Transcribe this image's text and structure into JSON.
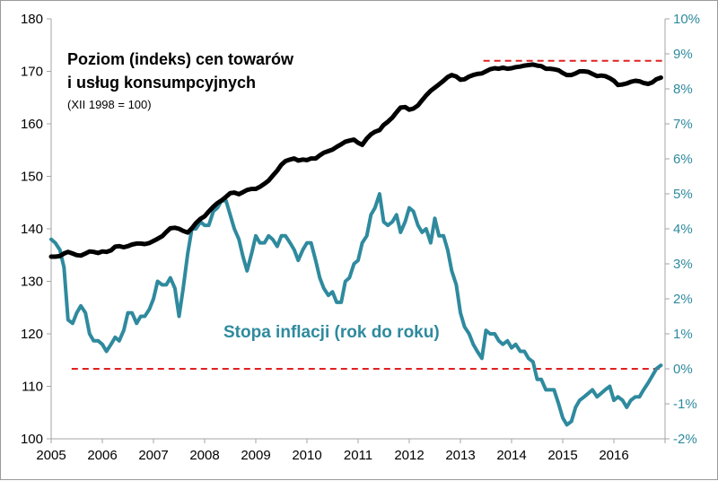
{
  "chart_data": {
    "type": "line",
    "title": "Poziom (indeks) cen towarów i usług konsumpcyjnych",
    "title_lines": [
      "Poziom (indeks) cen towarów",
      "i usług konsumpcyjnych"
    ],
    "subtitle": "(XII 1998 = 100)",
    "x_range": [
      2005,
      2017
    ],
    "x_ticks": [
      "2005",
      "2006",
      "2007",
      "2008",
      "2009",
      "2010",
      "2011",
      "2012",
      "2013",
      "2014",
      "2015",
      "2016"
    ],
    "y_left": {
      "range": [
        100,
        180
      ],
      "ticks": [
        "100",
        "110",
        "120",
        "130",
        "140",
        "150",
        "160",
        "170",
        "180"
      ]
    },
    "y_right": {
      "range": [
        -2,
        10
      ],
      "ticks": [
        "-2%",
        "-1%",
        "0%",
        "1%",
        "2%",
        "3%",
        "4%",
        "5%",
        "6%",
        "7%",
        "8%",
        "9%",
        "10%"
      ]
    },
    "colors": {
      "index": "#000000",
      "inflation": "#2f8a9e",
      "reference": "#e02020",
      "axis": "#a6a6a6"
    },
    "series": [
      {
        "name": "Poziom (indeks) cen towarów i usług konsumpcyjnych",
        "axis": "left",
        "x": [
          2005.0,
          2005.08,
          2005.17,
          2005.25,
          2005.33,
          2005.42,
          2005.5,
          2005.58,
          2005.67,
          2005.75,
          2005.83,
          2005.92,
          2006.0,
          2006.08,
          2006.17,
          2006.25,
          2006.33,
          2006.42,
          2006.5,
          2006.58,
          2006.67,
          2006.75,
          2006.83,
          2006.92,
          2007.0,
          2007.08,
          2007.17,
          2007.25,
          2007.33,
          2007.42,
          2007.5,
          2007.58,
          2007.67,
          2007.75,
          2007.83,
          2007.92,
          2008.0,
          2008.08,
          2008.17,
          2008.25,
          2008.33,
          2008.42,
          2008.5,
          2008.58,
          2008.67,
          2008.75,
          2008.83,
          2008.92,
          2009.0,
          2009.08,
          2009.17,
          2009.25,
          2009.33,
          2009.42,
          2009.5,
          2009.58,
          2009.67,
          2009.75,
          2009.83,
          2009.92,
          2010.0,
          2010.08,
          2010.17,
          2010.25,
          2010.33,
          2010.42,
          2010.5,
          2010.58,
          2010.67,
          2010.75,
          2010.83,
          2010.92,
          2011.0,
          2011.08,
          2011.17,
          2011.25,
          2011.33,
          2011.42,
          2011.5,
          2011.58,
          2011.67,
          2011.75,
          2011.83,
          2011.92,
          2012.0,
          2012.08,
          2012.17,
          2012.25,
          2012.33,
          2012.42,
          2012.5,
          2012.58,
          2012.67,
          2012.75,
          2012.83,
          2012.92,
          2013.0,
          2013.08,
          2013.17,
          2013.25,
          2013.33,
          2013.42,
          2013.5,
          2013.58,
          2013.67,
          2013.75,
          2013.83,
          2013.92,
          2014.0,
          2014.08,
          2014.17,
          2014.25,
          2014.33,
          2014.42,
          2014.5,
          2014.58,
          2014.67,
          2014.75,
          2014.83,
          2014.92,
          2015.0,
          2015.08,
          2015.17,
          2015.25,
          2015.33,
          2015.42,
          2015.5,
          2015.58,
          2015.67,
          2015.75,
          2015.83,
          2015.92,
          2016.0,
          2016.08,
          2016.17,
          2016.25,
          2016.33,
          2016.42,
          2016.5,
          2016.58,
          2016.67,
          2016.75,
          2016.83,
          2016.92
        ],
        "y": [
          134.7,
          134.7,
          134.8,
          135.3,
          135.6,
          135.3,
          135.0,
          134.9,
          135.3,
          135.7,
          135.6,
          135.4,
          135.7,
          135.6,
          135.9,
          136.6,
          136.7,
          136.5,
          136.7,
          137.0,
          137.2,
          137.2,
          137.1,
          137.3,
          137.7,
          138.1,
          138.6,
          139.4,
          140.1,
          140.2,
          140.0,
          139.6,
          139.3,
          140.1,
          141.1,
          141.9,
          142.4,
          143.3,
          144.2,
          144.9,
          145.4,
          146.1,
          146.8,
          146.9,
          146.6,
          147.0,
          147.4,
          147.6,
          147.6,
          148.0,
          148.6,
          149.2,
          150.1,
          151.1,
          152.2,
          152.9,
          153.2,
          153.4,
          153.0,
          153.2,
          153.1,
          153.4,
          153.4,
          154.0,
          154.5,
          154.8,
          155.1,
          155.6,
          156.1,
          156.6,
          156.8,
          157.0,
          156.4,
          156.0,
          157.2,
          158.0,
          158.5,
          158.8,
          159.8,
          160.4,
          161.2,
          162.2,
          163.1,
          163.2,
          162.7,
          162.9,
          163.5,
          164.5,
          165.4,
          166.3,
          166.9,
          167.5,
          168.2,
          168.9,
          169.3,
          169.0,
          168.4,
          168.5,
          169.0,
          169.3,
          169.5,
          169.6,
          170.0,
          170.4,
          170.6,
          170.5,
          170.7,
          170.5,
          170.6,
          170.8,
          170.9,
          171.1,
          171.2,
          171.3,
          171.1,
          171.0,
          170.5,
          170.5,
          170.4,
          170.2,
          169.7,
          169.3,
          169.3,
          169.6,
          170.0,
          170.0,
          169.9,
          169.5,
          169.1,
          169.2,
          169.1,
          168.7,
          168.2,
          167.4,
          167.5,
          167.7,
          168.0,
          168.2,
          168.1,
          167.8,
          167.6,
          167.9,
          168.5,
          168.8
        ]
      },
      {
        "name": "Stopa inflacji (rok do roku)",
        "axis": "right",
        "x": [
          2005.0,
          2005.08,
          2005.17,
          2005.25,
          2005.33,
          2005.42,
          2005.5,
          2005.58,
          2005.67,
          2005.75,
          2005.83,
          2005.92,
          2006.0,
          2006.08,
          2006.17,
          2006.25,
          2006.33,
          2006.42,
          2006.5,
          2006.58,
          2006.67,
          2006.75,
          2006.83,
          2006.92,
          2007.0,
          2007.08,
          2007.17,
          2007.25,
          2007.33,
          2007.42,
          2007.5,
          2007.58,
          2007.67,
          2007.75,
          2007.83,
          2007.92,
          2008.0,
          2008.08,
          2008.17,
          2008.25,
          2008.33,
          2008.42,
          2008.5,
          2008.58,
          2008.67,
          2008.75,
          2008.83,
          2008.92,
          2009.0,
          2009.08,
          2009.17,
          2009.25,
          2009.33,
          2009.42,
          2009.5,
          2009.58,
          2009.67,
          2009.75,
          2009.83,
          2009.92,
          2010.0,
          2010.08,
          2010.17,
          2010.25,
          2010.33,
          2010.42,
          2010.5,
          2010.58,
          2010.67,
          2010.75,
          2010.83,
          2010.92,
          2011.0,
          2011.08,
          2011.17,
          2011.25,
          2011.33,
          2011.42,
          2011.5,
          2011.58,
          2011.67,
          2011.75,
          2011.83,
          2011.92,
          2012.0,
          2012.08,
          2012.17,
          2012.25,
          2012.33,
          2012.42,
          2012.5,
          2012.58,
          2012.67,
          2012.75,
          2012.83,
          2012.92,
          2013.0,
          2013.08,
          2013.17,
          2013.25,
          2013.33,
          2013.42,
          2013.5,
          2013.58,
          2013.67,
          2013.75,
          2013.83,
          2013.92,
          2014.0,
          2014.08,
          2014.17,
          2014.25,
          2014.33,
          2014.42,
          2014.5,
          2014.58,
          2014.67,
          2014.75,
          2014.83,
          2014.92,
          2015.0,
          2015.08,
          2015.17,
          2015.25,
          2015.33,
          2015.42,
          2015.5,
          2015.58,
          2015.67,
          2015.75,
          2015.83,
          2015.92,
          2016.0,
          2016.08,
          2016.17,
          2016.25,
          2016.33,
          2016.42,
          2016.5,
          2016.58,
          2016.67,
          2016.75,
          2016.83,
          2016.92
        ],
        "y": [
          3.7,
          3.6,
          3.4,
          2.9,
          1.4,
          1.3,
          1.6,
          1.8,
          1.6,
          1.0,
          0.8,
          0.8,
          0.7,
          0.5,
          0.7,
          0.9,
          0.8,
          1.1,
          1.6,
          1.6,
          1.3,
          1.5,
          1.5,
          1.7,
          2.0,
          2.5,
          2.4,
          2.4,
          2.6,
          2.3,
          1.5,
          2.3,
          3.3,
          4.0,
          4.0,
          4.2,
          4.1,
          4.1,
          4.5,
          4.6,
          4.8,
          4.8,
          4.4,
          4.0,
          3.7,
          3.2,
          2.8,
          3.3,
          3.8,
          3.6,
          3.6,
          3.8,
          3.7,
          3.5,
          3.8,
          3.8,
          3.6,
          3.4,
          3.1,
          3.4,
          3.6,
          3.6,
          3.1,
          2.6,
          2.3,
          2.1,
          2.2,
          1.9,
          1.9,
          2.5,
          2.6,
          3.0,
          3.1,
          3.6,
          3.8,
          4.4,
          4.6,
          5.0,
          4.2,
          4.1,
          4.2,
          4.4,
          3.9,
          4.2,
          4.6,
          4.5,
          4.1,
          3.9,
          4.0,
          3.6,
          4.3,
          3.8,
          3.8,
          3.4,
          2.8,
          2.4,
          1.6,
          1.2,
          1.0,
          0.7,
          0.5,
          0.3,
          1.1,
          1.0,
          1.0,
          0.8,
          0.7,
          0.8,
          0.6,
          0.7,
          0.5,
          0.5,
          0.3,
          0.2,
          -0.3,
          -0.3,
          -0.6,
          -0.6,
          -0.6,
          -1.0,
          -1.4,
          -1.6,
          -1.5,
          -1.1,
          -0.9,
          -0.8,
          -0.7,
          -0.6,
          -0.8,
          -0.7,
          -0.6,
          -0.5,
          -0.9,
          -0.8,
          -0.9,
          -1.1,
          -0.9,
          -0.8,
          -0.8,
          -0.6,
          -0.4,
          -0.2,
          0.0,
          0.1
        ]
      }
    ],
    "reference_lines": [
      {
        "axis": "right",
        "value": 0,
        "x_from": 2005.4,
        "x_to": 2016.92,
        "style": "dashed"
      },
      {
        "axis": "left",
        "value": 172.0,
        "x_from": 2013.45,
        "x_to": 2017.0,
        "style": "dashed"
      }
    ],
    "annotation": "Stopa inflacji (rok do roku)"
  }
}
